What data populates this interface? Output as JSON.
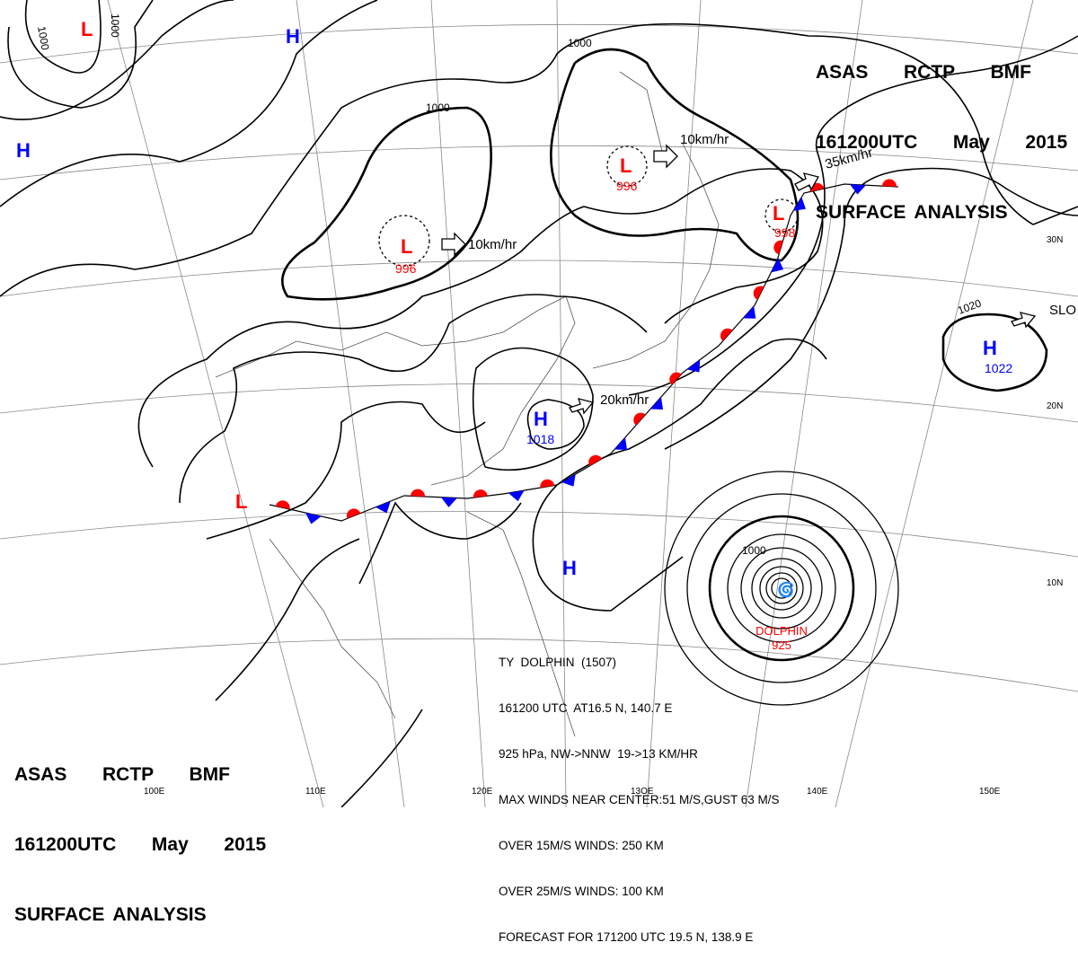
{
  "header": {
    "line1": "ASAS  RCTP  BMF",
    "line2": "161200UTC  May  2015",
    "line3": "SURFACE ANALYSIS"
  },
  "colors": {
    "low": "#ff0000",
    "high": "#0000ff",
    "warm_front": "#ff0000",
    "cold_front": "#0000ff",
    "isobar": "#000000",
    "grid": "#888888"
  },
  "grid_labels": {
    "lat": [
      "30N",
      "20N",
      "10N"
    ],
    "lon": [
      "100E",
      "110E",
      "120E",
      "13OE",
      "140E",
      "150E"
    ]
  },
  "pressure_systems": [
    {
      "type": "L",
      "value": ""
    },
    {
      "type": "H",
      "value": ""
    },
    {
      "type": "H",
      "value": ""
    },
    {
      "type": "L",
      "value": "996"
    },
    {
      "type": "L",
      "value": "996"
    },
    {
      "type": "L",
      "value": "998"
    },
    {
      "type": "H",
      "value": "1018"
    },
    {
      "type": "H",
      "value": "1022"
    },
    {
      "type": "L",
      "value": ""
    },
    {
      "type": "H",
      "value": ""
    }
  ],
  "movement_arrows": [
    "10km/hr",
    "10km/hr",
    "35km/hr",
    "20km/hr",
    "SLO"
  ],
  "isobar_labels": [
    "1000",
    "1000",
    "1000",
    "1000",
    "1000",
    "1020",
    "1000"
  ],
  "typhoon": {
    "name": "DOLPHIN",
    "pressure": "925",
    "info": [
      "TY  DOLPHIN  (1507)",
      "161200 UTC  AT16.5 N, 140.7 E",
      "925 hPa, NW->NNW  19->13 KM/HR",
      "MAX WINDS NEAR CENTER:51 M/S,GUST 63 M/S",
      "OVER 15M/S WINDS: 250 KM",
      "OVER 25M/S WINDS: 100 KM",
      "FORECAST FOR 171200 UTC 19.5 N, 138.9 E"
    ]
  }
}
